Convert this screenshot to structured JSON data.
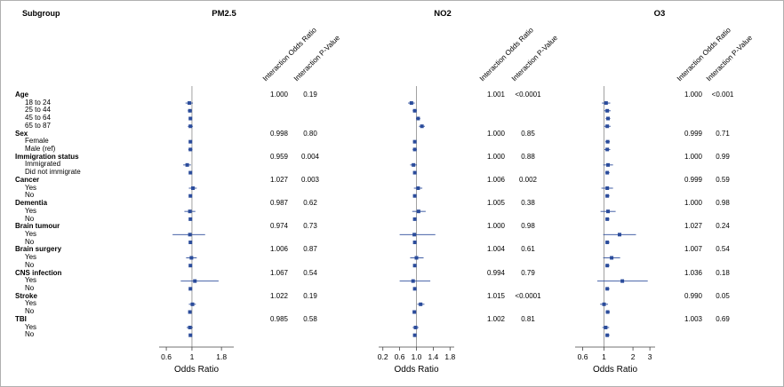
{
  "header": {
    "subgroup_col": "Subgroup",
    "rotated_cols": [
      "Interaction Odds Ratio",
      "Interaction P-Value"
    ]
  },
  "rows": [
    {
      "label": "Age",
      "type": "header"
    },
    {
      "label": "18 to 24",
      "type": "sub"
    },
    {
      "label": "25 to 44",
      "type": "sub"
    },
    {
      "label": "45 to 64",
      "type": "sub"
    },
    {
      "label": "65 to 87",
      "type": "sub"
    },
    {
      "label": "Sex",
      "type": "header"
    },
    {
      "label": "Female",
      "type": "sub"
    },
    {
      "label": "Male (ref)",
      "type": "sub"
    },
    {
      "label": "Immigration status",
      "type": "header"
    },
    {
      "label": "Immigrated",
      "type": "sub"
    },
    {
      "label": "Did not immigrate",
      "type": "sub"
    },
    {
      "label": "Cancer",
      "type": "header"
    },
    {
      "label": "Yes",
      "type": "sub"
    },
    {
      "label": "No",
      "type": "sub"
    },
    {
      "label": "Dementia",
      "type": "header"
    },
    {
      "label": "Yes",
      "type": "sub"
    },
    {
      "label": "No",
      "type": "sub"
    },
    {
      "label": "Brain tumour",
      "type": "header"
    },
    {
      "label": "Yes",
      "type": "sub"
    },
    {
      "label": "No",
      "type": "sub"
    },
    {
      "label": "Brain surgery",
      "type": "header"
    },
    {
      "label": "Yes",
      "type": "sub"
    },
    {
      "label": "No",
      "type": "sub"
    },
    {
      "label": "CNS infection",
      "type": "header"
    },
    {
      "label": "Yes",
      "type": "sub"
    },
    {
      "label": "No",
      "type": "sub"
    },
    {
      "label": "Stroke",
      "type": "header"
    },
    {
      "label": "Yes",
      "type": "sub"
    },
    {
      "label": "No",
      "type": "sub"
    },
    {
      "label": "TBI",
      "type": "header"
    },
    {
      "label": "Yes",
      "type": "sub"
    },
    {
      "label": "No",
      "type": "sub"
    }
  ],
  "colors": {
    "marker": "#2b4c9b",
    "ci_line": "#2b4c9b",
    "ref_line": "#8a8a8a",
    "axis": "#444444",
    "border": "#b0b0b0",
    "background": "#ffffff",
    "text": "#000000"
  },
  "chart_data": {
    "type": "scatter",
    "variant": "forest-plot",
    "axis_label": "Odds Ratio",
    "panels": [
      {
        "title": "PM2.5",
        "axis": {
          "scale": "log",
          "min": 0.52,
          "max": 2.3,
          "ticks": [
            "0.6",
            "1",
            "1.8"
          ],
          "tick_values": [
            0.6,
            1,
            1.8
          ]
        },
        "interaction_stats": [
          {
            "i": 0,
            "row": "Age",
            "or": "1.000",
            "p": "0.19"
          },
          {
            "i": 5,
            "row": "Sex",
            "or": "0.998",
            "p": "0.80"
          },
          {
            "i": 8,
            "row": "Immigration status",
            "or": "0.959",
            "p": "0.004"
          },
          {
            "i": 11,
            "row": "Cancer",
            "or": "1.027",
            "p": "0.003"
          },
          {
            "i": 14,
            "row": "Dementia",
            "or": "0.987",
            "p": "0.62"
          },
          {
            "i": 17,
            "row": "Brain tumour",
            "or": "0.974",
            "p": "0.73"
          },
          {
            "i": 20,
            "row": "Brain surgery",
            "or": "1.006",
            "p": "0.87"
          },
          {
            "i": 23,
            "row": "CNS infection",
            "or": "1.067",
            "p": "0.54"
          },
          {
            "i": 26,
            "row": "Stroke",
            "or": "1.022",
            "p": "0.19"
          },
          {
            "i": 29,
            "row": "TBI",
            "or": "0.985",
            "p": "0.58"
          }
        ],
        "points": [
          {
            "i": 1,
            "row": "18 to 24",
            "or": 0.95,
            "lo": 0.88,
            "hi": 1.02
          },
          {
            "i": 2,
            "row": "25 to 44",
            "or": 0.96,
            "lo": 0.92,
            "hi": 1.0
          },
          {
            "i": 3,
            "row": "45 to 64",
            "or": 0.97,
            "lo": 0.94,
            "hi": 1.0
          },
          {
            "i": 4,
            "row": "65 to 87",
            "or": 0.97,
            "lo": 0.92,
            "hi": 1.02
          },
          {
            "i": 6,
            "row": "Female",
            "or": 0.97,
            "lo": 0.94,
            "hi": 1.0
          },
          {
            "i": 7,
            "row": "Male (ref)",
            "or": 0.97,
            "lo": 0.93,
            "hi": 1.01
          },
          {
            "i": 9,
            "row": "Immigrated",
            "or": 0.91,
            "lo": 0.84,
            "hi": 0.98
          },
          {
            "i": 10,
            "row": "Did not immigrate",
            "or": 0.97,
            "lo": 0.95,
            "hi": 1.0
          },
          {
            "i": 12,
            "row": "Cancer Yes",
            "or": 1.02,
            "lo": 0.94,
            "hi": 1.1
          },
          {
            "i": 13,
            "row": "Cancer No",
            "or": 0.97,
            "lo": 0.94,
            "hi": 0.99
          },
          {
            "i": 15,
            "row": "Dementia Yes",
            "or": 0.96,
            "lo": 0.86,
            "hi": 1.07
          },
          {
            "i": 16,
            "row": "Dementia No",
            "or": 0.97,
            "lo": 0.95,
            "hi": 0.99
          },
          {
            "i": 18,
            "row": "Brain tumour Yes",
            "or": 0.96,
            "lo": 0.68,
            "hi": 1.3
          },
          {
            "i": 19,
            "row": "Brain tumour No",
            "or": 0.97,
            "lo": 0.95,
            "hi": 0.99
          },
          {
            "i": 21,
            "row": "Brain surgery Yes",
            "or": 0.99,
            "lo": 0.89,
            "hi": 1.1
          },
          {
            "i": 22,
            "row": "Brain surgery No",
            "or": 0.97,
            "lo": 0.95,
            "hi": 0.99
          },
          {
            "i": 24,
            "row": "CNS infection Yes",
            "or": 1.06,
            "lo": 0.8,
            "hi": 1.7
          },
          {
            "i": 25,
            "row": "CNS infection No",
            "or": 0.97,
            "lo": 0.95,
            "hi": 0.99
          },
          {
            "i": 27,
            "row": "Stroke Yes",
            "or": 1.01,
            "lo": 0.94,
            "hi": 1.08
          },
          {
            "i": 28,
            "row": "Stroke No",
            "or": 0.96,
            "lo": 0.94,
            "hi": 0.99
          },
          {
            "i": 30,
            "row": "TBI Yes",
            "or": 0.96,
            "lo": 0.9,
            "hi": 1.02
          },
          {
            "i": 31,
            "row": "TBI No",
            "or": 0.97,
            "lo": 0.95,
            "hi": 0.99
          }
        ]
      },
      {
        "title": "NO2",
        "axis": {
          "scale": "linear",
          "min": 0.1,
          "max": 1.9,
          "ticks": [
            "0.2",
            "0.6",
            "1.0",
            "1.4",
            "1.8"
          ],
          "tick_values": [
            0.2,
            0.6,
            1.0,
            1.4,
            1.8
          ]
        },
        "interaction_stats": [
          {
            "i": 0,
            "row": "Age",
            "or": "1.001",
            "p": "<0.0001"
          },
          {
            "i": 5,
            "row": "Sex",
            "or": "1.000",
            "p": "0.85"
          },
          {
            "i": 8,
            "row": "Immigration status",
            "or": "1.000",
            "p": "0.88"
          },
          {
            "i": 11,
            "row": "Cancer",
            "or": "1.006",
            "p": "0.002"
          },
          {
            "i": 14,
            "row": "Dementia",
            "or": "1.005",
            "p": "0.38"
          },
          {
            "i": 17,
            "row": "Brain tumour",
            "or": "1.000",
            "p": "0.98"
          },
          {
            "i": 20,
            "row": "Brain surgery",
            "or": "1.004",
            "p": "0.61"
          },
          {
            "i": 23,
            "row": "CNS infection",
            "or": "0.994",
            "p": "0.79"
          },
          {
            "i": 26,
            "row": "Stroke",
            "or": "1.015",
            "p": "<0.0001"
          },
          {
            "i": 29,
            "row": "TBI",
            "or": "1.002",
            "p": "0.81"
          }
        ],
        "points": [
          {
            "i": 1,
            "row": "18 to 24",
            "or": 0.88,
            "lo": 0.8,
            "hi": 0.96
          },
          {
            "i": 2,
            "row": "25 to 44",
            "or": 0.96,
            "lo": 0.91,
            "hi": 1.01
          },
          {
            "i": 3,
            "row": "45 to 64",
            "or": 1.04,
            "lo": 0.99,
            "hi": 1.09
          },
          {
            "i": 4,
            "row": "65 to 87",
            "or": 1.13,
            "lo": 1.06,
            "hi": 1.2
          },
          {
            "i": 6,
            "row": "Female",
            "or": 0.96,
            "lo": 0.92,
            "hi": 1.0
          },
          {
            "i": 7,
            "row": "Male (ref)",
            "or": 0.96,
            "lo": 0.91,
            "hi": 1.01
          },
          {
            "i": 9,
            "row": "Immigrated",
            "or": 0.93,
            "lo": 0.85,
            "hi": 1.01
          },
          {
            "i": 10,
            "row": "Did not immigrate",
            "or": 0.96,
            "lo": 0.93,
            "hi": 1.0
          },
          {
            "i": 12,
            "row": "Cancer Yes",
            "or": 1.04,
            "lo": 0.94,
            "hi": 1.14
          },
          {
            "i": 13,
            "row": "Cancer No",
            "or": 0.96,
            "lo": 0.92,
            "hi": 0.99
          },
          {
            "i": 15,
            "row": "Dementia Yes",
            "or": 1.05,
            "lo": 0.9,
            "hi": 1.22
          },
          {
            "i": 16,
            "row": "Dementia No",
            "or": 0.96,
            "lo": 0.93,
            "hi": 0.99
          },
          {
            "i": 18,
            "row": "Brain tumour Yes",
            "or": 0.95,
            "lo": 0.6,
            "hi": 1.45
          },
          {
            "i": 19,
            "row": "Brain tumour No",
            "or": 0.96,
            "lo": 0.93,
            "hi": 0.99
          },
          {
            "i": 21,
            "row": "Brain surgery Yes",
            "or": 1.0,
            "lo": 0.85,
            "hi": 1.17
          },
          {
            "i": 22,
            "row": "Brain surgery No",
            "or": 0.96,
            "lo": 0.93,
            "hi": 0.99
          },
          {
            "i": 24,
            "row": "CNS infection Yes",
            "or": 0.92,
            "lo": 0.6,
            "hi": 1.33
          },
          {
            "i": 25,
            "row": "CNS infection No",
            "or": 0.96,
            "lo": 0.93,
            "hi": 0.99
          },
          {
            "i": 27,
            "row": "Stroke Yes",
            "or": 1.1,
            "lo": 1.02,
            "hi": 1.19
          },
          {
            "i": 28,
            "row": "Stroke No",
            "or": 0.95,
            "lo": 0.92,
            "hi": 0.99
          },
          {
            "i": 30,
            "row": "TBI Yes",
            "or": 0.98,
            "lo": 0.91,
            "hi": 1.05
          },
          {
            "i": 31,
            "row": "TBI No",
            "or": 0.96,
            "lo": 0.93,
            "hi": 0.99
          }
        ]
      },
      {
        "title": "O3",
        "axis": {
          "scale": "log",
          "min": 0.5,
          "max": 3.4,
          "ticks": [
            "0.6",
            "1",
            "2",
            "3"
          ],
          "tick_values": [
            0.6,
            1,
            2,
            3
          ]
        },
        "interaction_stats": [
          {
            "i": 0,
            "row": "Age",
            "or": "1.000",
            "p": "<0.001"
          },
          {
            "i": 5,
            "row": "Sex",
            "or": "0.999",
            "p": "0.71"
          },
          {
            "i": 8,
            "row": "Immigration status",
            "or": "1.000",
            "p": "0.99"
          },
          {
            "i": 11,
            "row": "Cancer",
            "or": "0.999",
            "p": "0.59"
          },
          {
            "i": 14,
            "row": "Dementia",
            "or": "1.000",
            "p": "0.98"
          },
          {
            "i": 17,
            "row": "Brain tumour",
            "or": "1.027",
            "p": "0.24"
          },
          {
            "i": 20,
            "row": "Brain surgery",
            "or": "1.007",
            "p": "0.54"
          },
          {
            "i": 23,
            "row": "CNS infection",
            "or": "1.036",
            "p": "0.18"
          },
          {
            "i": 26,
            "row": "Stroke",
            "or": "0.990",
            "p": "0.05"
          },
          {
            "i": 29,
            "row": "TBI",
            "or": "1.003",
            "p": "0.69"
          }
        ],
        "points": [
          {
            "i": 1,
            "row": "18 to 24",
            "or": 1.05,
            "lo": 0.95,
            "hi": 1.16
          },
          {
            "i": 2,
            "row": "25 to 44",
            "or": 1.08,
            "lo": 1.0,
            "hi": 1.17
          },
          {
            "i": 3,
            "row": "45 to 64",
            "or": 1.1,
            "lo": 1.04,
            "hi": 1.16
          },
          {
            "i": 4,
            "row": "65 to 87",
            "or": 1.08,
            "lo": 1.0,
            "hi": 1.17
          },
          {
            "i": 6,
            "row": "Female",
            "or": 1.09,
            "lo": 1.03,
            "hi": 1.15
          },
          {
            "i": 7,
            "row": "Male (ref)",
            "or": 1.08,
            "lo": 1.01,
            "hi": 1.16
          },
          {
            "i": 9,
            "row": "Immigrated",
            "or": 1.1,
            "lo": 0.98,
            "hi": 1.24
          },
          {
            "i": 10,
            "row": "Did not immigrate",
            "or": 1.08,
            "lo": 1.03,
            "hi": 1.14
          },
          {
            "i": 12,
            "row": "Cancer Yes",
            "or": 1.08,
            "lo": 0.94,
            "hi": 1.24
          },
          {
            "i": 13,
            "row": "Cancer No",
            "or": 1.08,
            "lo": 1.03,
            "hi": 1.14
          },
          {
            "i": 15,
            "row": "Dementia Yes",
            "or": 1.1,
            "lo": 0.92,
            "hi": 1.32
          },
          {
            "i": 16,
            "row": "Dementia No",
            "or": 1.08,
            "lo": 1.03,
            "hi": 1.14
          },
          {
            "i": 18,
            "row": "Brain tumour Yes",
            "or": 1.45,
            "lo": 0.98,
            "hi": 2.15
          },
          {
            "i": 19,
            "row": "Brain tumour No",
            "or": 1.08,
            "lo": 1.03,
            "hi": 1.14
          },
          {
            "i": 21,
            "row": "Brain surgery Yes",
            "or": 1.2,
            "lo": 0.98,
            "hi": 1.47
          },
          {
            "i": 22,
            "row": "Brain surgery No",
            "or": 1.08,
            "lo": 1.03,
            "hi": 1.14
          },
          {
            "i": 24,
            "row": "CNS infection Yes",
            "or": 1.55,
            "lo": 0.85,
            "hi": 2.85
          },
          {
            "i": 25,
            "row": "CNS infection No",
            "or": 1.08,
            "lo": 1.03,
            "hi": 1.14
          },
          {
            "i": 27,
            "row": "Stroke Yes",
            "or": 1.0,
            "lo": 0.91,
            "hi": 1.1
          },
          {
            "i": 28,
            "row": "Stroke No",
            "or": 1.09,
            "lo": 1.04,
            "hi": 1.15
          },
          {
            "i": 30,
            "row": "TBI Yes",
            "or": 1.04,
            "lo": 0.96,
            "hi": 1.13
          },
          {
            "i": 31,
            "row": "TBI No",
            "or": 1.08,
            "lo": 1.03,
            "hi": 1.14
          }
        ]
      }
    ]
  }
}
